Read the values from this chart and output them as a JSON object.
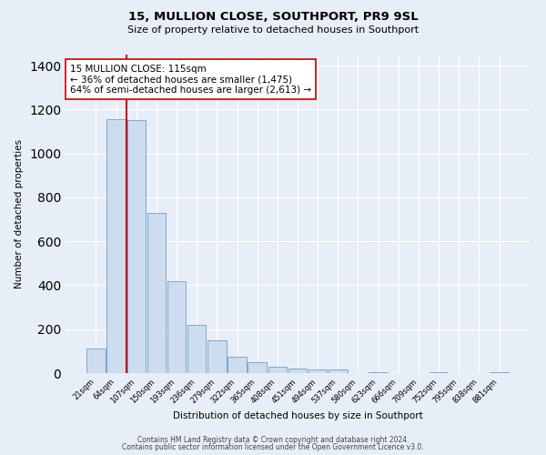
{
  "title": "15, MULLION CLOSE, SOUTHPORT, PR9 9SL",
  "subtitle": "Size of property relative to detached houses in Southport",
  "xlabel": "Distribution of detached houses by size in Southport",
  "ylabel": "Number of detached properties",
  "bin_labels": [
    "21sqm",
    "64sqm",
    "107sqm",
    "150sqm",
    "193sqm",
    "236sqm",
    "279sqm",
    "322sqm",
    "365sqm",
    "408sqm",
    "451sqm",
    "494sqm",
    "537sqm",
    "580sqm",
    "623sqm",
    "666sqm",
    "709sqm",
    "752sqm",
    "795sqm",
    "838sqm",
    "881sqm"
  ],
  "bar_heights": [
    110,
    1155,
    1150,
    730,
    420,
    220,
    150,
    75,
    50,
    30,
    20,
    15,
    15,
    0,
    5,
    0,
    0,
    5,
    0,
    0,
    5
  ],
  "bar_color": "#cddcef",
  "bar_edge_color": "#7aaace",
  "vline_color": "#cc0000",
  "vline_x_index": 2,
  "annotation_title": "15 MULLION CLOSE: 115sqm",
  "annotation_line1": "← 36% of detached houses are smaller (1,475)",
  "annotation_line2": "64% of semi-detached houses are larger (2,613) →",
  "annotation_box_facecolor": "#ffffff",
  "annotation_box_edgecolor": "#cc0000",
  "background_color": "#e8eef8",
  "plot_bg_color": "#e8eef8",
  "ylim": [
    0,
    1450
  ],
  "yticks": [
    0,
    200,
    400,
    600,
    800,
    1000,
    1200,
    1400
  ],
  "footer1": "Contains HM Land Registry data © Crown copyright and database right 2024.",
  "footer2": "Contains public sector information licensed under the Open Government Licence v3.0."
}
